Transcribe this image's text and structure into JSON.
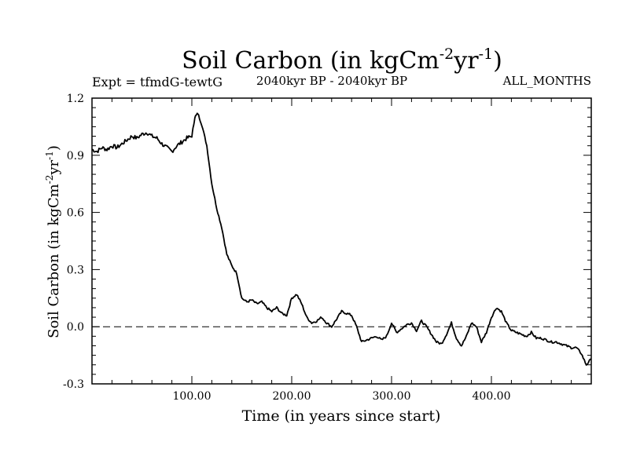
{
  "chart_data": {
    "type": "line",
    "title": {
      "main": "Soil Carbon (in kgCm",
      "sup1": "-2",
      "mid": "yr",
      "sup2": "-1",
      "end": ")"
    },
    "subtitle_left": "Expt = tfmdG-tewtG",
    "subtitle_center": "2040kyr BP - 2040kyr BP",
    "subtitle_right": "ALL_MONTHS",
    "xlabel": "Time (in years since start)",
    "ylabel": {
      "main": "Soil Carbon (in kgCm",
      "sup1": "-2",
      "mid": "yr",
      "sup2": "-1",
      "end": ")"
    },
    "xlim": [
      0,
      500
    ],
    "ylim": [
      -0.3,
      1.2
    ],
    "x_ticks": [
      100,
      200,
      300,
      400
    ],
    "x_tick_labels": [
      "100.00",
      "200.00",
      "300.00",
      "400.00"
    ],
    "y_ticks": [
      -0.3,
      0.0,
      0.3,
      0.6,
      0.9,
      1.2
    ],
    "y_tick_labels": [
      "-0.3",
      "0.0",
      "0.3",
      "0.6",
      "0.9",
      "1.2"
    ],
    "reference_line_y": 0.0,
    "series": [
      {
        "name": "Soil Carbon",
        "color": "#000000",
        "x": [
          0,
          5,
          10,
          15,
          20,
          25,
          30,
          35,
          40,
          45,
          50,
          55,
          60,
          65,
          70,
          75,
          80,
          85,
          90,
          95,
          100,
          103,
          106,
          110,
          115,
          120,
          125,
          130,
          135,
          140,
          145,
          150,
          155,
          160,
          165,
          170,
          175,
          180,
          185,
          190,
          195,
          200,
          205,
          210,
          215,
          220,
          225,
          230,
          235,
          240,
          245,
          250,
          255,
          260,
          265,
          270,
          275,
          280,
          285,
          290,
          295,
          300,
          305,
          310,
          315,
          320,
          325,
          330,
          335,
          340,
          345,
          350,
          355,
          360,
          365,
          370,
          375,
          380,
          385,
          390,
          395,
          400,
          405,
          410,
          415,
          420,
          425,
          430,
          435,
          440,
          445,
          450,
          455,
          460,
          465,
          470,
          475,
          480,
          485,
          490,
          495,
          500
        ],
        "y": [
          0.93,
          0.92,
          0.94,
          0.93,
          0.95,
          0.94,
          0.96,
          0.98,
          1.0,
          0.99,
          1.01,
          1.02,
          1.0,
          0.99,
          0.96,
          0.94,
          0.92,
          0.95,
          0.97,
          0.99,
          1.0,
          1.1,
          1.12,
          1.06,
          0.95,
          0.75,
          0.62,
          0.52,
          0.38,
          0.32,
          0.28,
          0.15,
          0.13,
          0.14,
          0.12,
          0.13,
          0.1,
          0.08,
          0.1,
          0.07,
          0.06,
          0.15,
          0.17,
          0.12,
          0.05,
          0.02,
          0.03,
          0.05,
          0.02,
          0.0,
          0.04,
          0.08,
          0.07,
          0.06,
          0.0,
          -0.08,
          -0.07,
          -0.06,
          -0.05,
          -0.07,
          -0.05,
          0.02,
          -0.03,
          -0.01,
          0.01,
          0.02,
          -0.02,
          0.03,
          0.0,
          -0.04,
          -0.08,
          -0.09,
          -0.04,
          0.02,
          -0.06,
          -0.1,
          -0.05,
          0.02,
          0.0,
          -0.08,
          -0.03,
          0.05,
          0.1,
          0.08,
          0.02,
          -0.02,
          -0.03,
          -0.04,
          -0.05,
          -0.03,
          -0.06,
          -0.06,
          -0.07,
          -0.08,
          -0.08,
          -0.09,
          -0.1,
          -0.11,
          -0.11,
          -0.14,
          -0.2,
          -0.17
        ]
      }
    ]
  }
}
